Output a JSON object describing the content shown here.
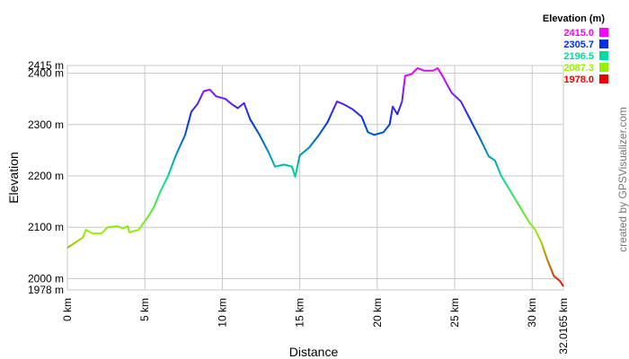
{
  "chart_data": {
    "type": "line",
    "xlabel": "Distance",
    "ylabel": "Elevation",
    "credit": "created by GPSVisualizer.com",
    "legend_title": "Elevation (m)",
    "legend": [
      {
        "value": 2415,
        "label": "2415.0",
        "color": "#ff00ff"
      },
      {
        "value": 2305.7,
        "label": "2305.7",
        "color": "#0033dd"
      },
      {
        "value": 2196.5,
        "label": "2196.5",
        "color": "#00dd99"
      },
      {
        "value": 2087.3,
        "label": "2087.3",
        "color": "#99ee00"
      },
      {
        "value": 1978,
        "label": "1978.0",
        "color": "#ee0000"
      }
    ],
    "grid": true,
    "xlim": [
      0,
      32.0165
    ],
    "ylim": [
      1978,
      2415
    ],
    "xticks": [
      {
        "value": 0,
        "label": "0 km"
      },
      {
        "value": 5,
        "label": "5 km"
      },
      {
        "value": 10,
        "label": "10 km"
      },
      {
        "value": 15,
        "label": "15 km"
      },
      {
        "value": 20,
        "label": "20 km"
      },
      {
        "value": 25,
        "label": "25 km"
      },
      {
        "value": 30,
        "label": "30 km"
      },
      {
        "value": 32.0165,
        "label": "32.0165 km"
      }
    ],
    "yticks": [
      {
        "value": 1978,
        "label": "1978 m"
      },
      {
        "value": 2000,
        "label": "2000 m"
      },
      {
        "value": 2100,
        "label": "2100 m"
      },
      {
        "value": 2200,
        "label": "2200 m"
      },
      {
        "value": 2300,
        "label": "2300 m"
      },
      {
        "value": 2400,
        "label": "2400 m"
      },
      {
        "value": 2415,
        "label": "2415 m"
      }
    ],
    "x": [
      0,
      0.5,
      1,
      1.2,
      1.6,
      2.2,
      2.6,
      3.2,
      3.6,
      3.9,
      4.0,
      4.6,
      5.0,
      5.2,
      5.6,
      6.0,
      6.5,
      7.0,
      7.6,
      8.0,
      8.4,
      8.8,
      9.2,
      9.6,
      10.2,
      10.6,
      11.0,
      11.4,
      11.8,
      12.4,
      13.0,
      13.4,
      14.0,
      14.5,
      14.7,
      15.0,
      15.6,
      16.2,
      16.8,
      17.4,
      17.8,
      18.4,
      19.0,
      19.4,
      19.8,
      20.4,
      20.8,
      21.0,
      21.3,
      21.6,
      21.8,
      22.2,
      22.6,
      23.0,
      23.6,
      23.9,
      24.2,
      24.8,
      25.4,
      26.0,
      26.6,
      27.2,
      27.6,
      28.0,
      28.6,
      29.2,
      29.8,
      30.2,
      30.6,
      31.0,
      31.4,
      31.8,
      32.0165
    ],
    "values": [
      2060,
      2070,
      2080,
      2095,
      2088,
      2088,
      2100,
      2102,
      2098,
      2102,
      2090,
      2095,
      2112,
      2120,
      2140,
      2170,
      2200,
      2240,
      2280,
      2325,
      2340,
      2365,
      2368,
      2355,
      2350,
      2340,
      2332,
      2342,
      2310,
      2280,
      2245,
      2218,
      2222,
      2218,
      2198,
      2240,
      2255,
      2278,
      2305,
      2345,
      2340,
      2330,
      2315,
      2285,
      2280,
      2285,
      2300,
      2335,
      2320,
      2345,
      2395,
      2398,
      2410,
      2405,
      2405,
      2410,
      2395,
      2362,
      2345,
      2310,
      2275,
      2238,
      2230,
      2200,
      2170,
      2140,
      2110,
      2095,
      2070,
      2035,
      2005,
      1995,
      1985
    ]
  }
}
